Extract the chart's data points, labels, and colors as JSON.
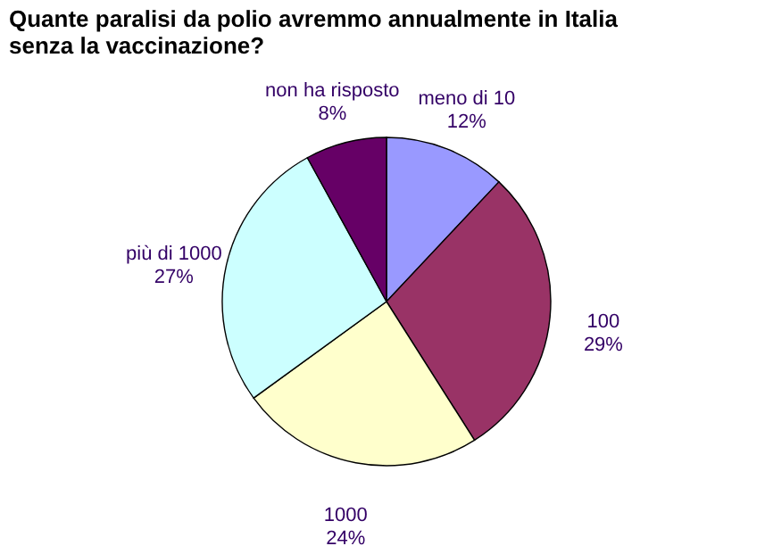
{
  "chart_data": {
    "type": "pie",
    "title": "Quante paralisi da polio avremmo annualmente in Italia senza la vaccinazione?",
    "categories": [
      "meno di 10",
      "100",
      "1000",
      "più di 1000",
      "non ha risposto"
    ],
    "values": [
      12,
      29,
      24,
      27,
      8
    ],
    "value_labels": [
      "12%",
      "29%",
      "24%",
      "27%",
      "8%"
    ],
    "colors": [
      "#9999ff",
      "#993366",
      "#ffffcc",
      "#ccffff",
      "#660066"
    ],
    "legend": false
  }
}
